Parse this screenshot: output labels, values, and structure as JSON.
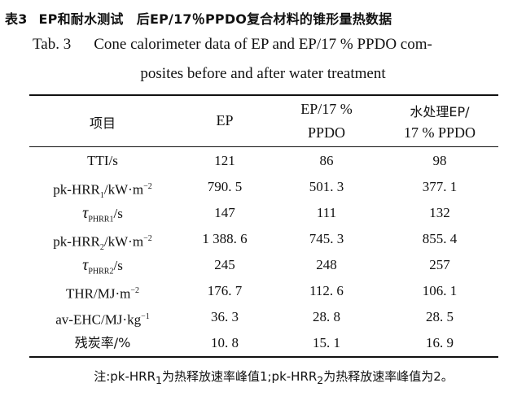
{
  "caption": {
    "cn_label": "表3",
    "cn_text": "EP和耐水测试　后EP/17％PPDO复合材料的锥形量热数据",
    "en_label": "Tab. 3",
    "en_line1": "Cone calorimeter data of EP and EP/17 % PPDO com-",
    "en_line2": "posites before and after water treatment"
  },
  "table": {
    "headers": {
      "item": "项目",
      "ep": "EP",
      "pp1_a": "EP/17 %",
      "pp1_b": "PPDO",
      "pp2_a": "水处理EP/",
      "pp2_b": "17 % PPDO"
    },
    "rows": [
      {
        "label": "TTI/s",
        "ep": "121",
        "pp": "86",
        "wt": "98"
      },
      {
        "label_pre": "pk-HRR",
        "label_sub": "1",
        "label_post": "/kW·m",
        "label_sup": "−2",
        "ep": "790. 5",
        "pp": "501. 3",
        "wt": "377. 1"
      },
      {
        "label_tau": "τ",
        "label_sub": "PHRR1",
        "label_post": "/s",
        "ep": "147",
        "pp": "111",
        "wt": "132"
      },
      {
        "label_pre": "pk-HRR",
        "label_sub": "2",
        "label_post": "/kW·m",
        "label_sup": "−2",
        "ep": "1 388. 6",
        "pp": "745. 3",
        "wt": "855. 4"
      },
      {
        "label_tau": "τ",
        "label_sub": "PHRR2",
        "label_post": "/s",
        "ep": "245",
        "pp": "248",
        "wt": "257"
      },
      {
        "label_pre": "THR/MJ·m",
        "label_sup": "−2",
        "ep": "176. 7",
        "pp": "112. 6",
        "wt": "106. 1"
      },
      {
        "label_pre": "av-EHC/MJ·kg",
        "label_sup": "−1",
        "ep": "36. 3",
        "pp": "28. 8",
        "wt": "28. 5"
      },
      {
        "label": "残炭率/%",
        "ep": "10. 8",
        "pp": "15. 1",
        "wt": "16. 9"
      }
    ]
  },
  "note": {
    "prefix": "注:pk-HRR",
    "sub1": "1",
    "mid": "为热释放速率峰值1;pk-HRR",
    "sub2": "2",
    "suffix": "为热释放速率峰值为2。"
  }
}
